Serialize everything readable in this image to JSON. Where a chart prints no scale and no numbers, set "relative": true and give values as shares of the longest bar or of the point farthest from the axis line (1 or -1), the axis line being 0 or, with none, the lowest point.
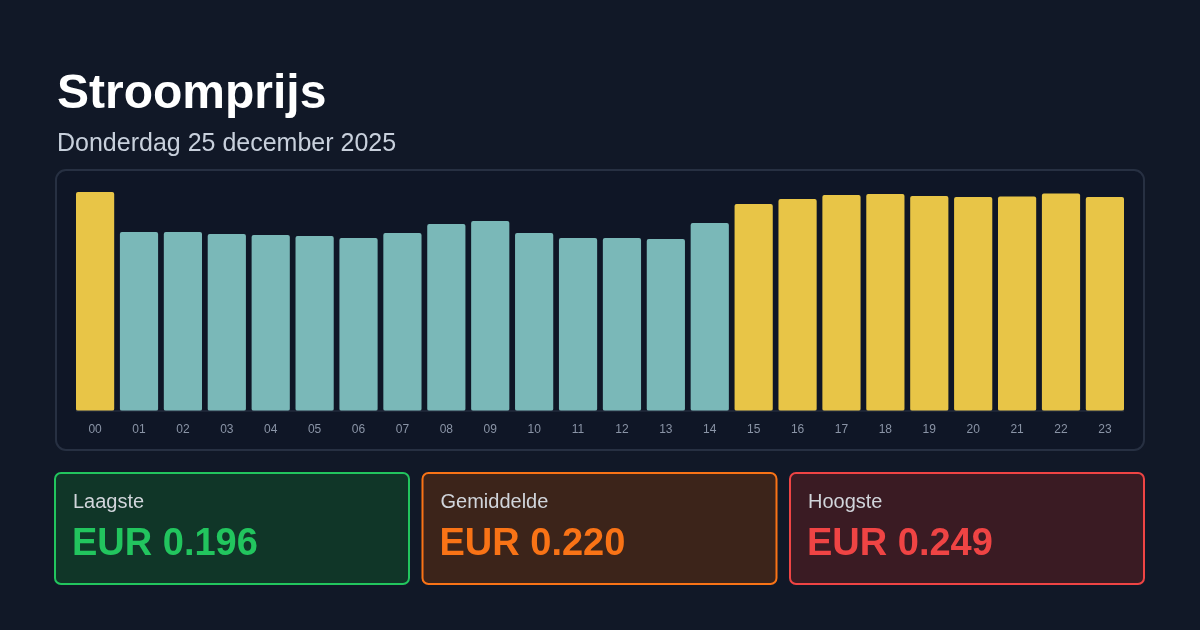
{
  "chart_data": [
    {
      "type": "bar",
      "title": "Stroomprijs",
      "subtitle": "Donderdag 25 december 2025",
      "relative": true,
      "categories": [
        "00",
        "01",
        "02",
        "03",
        "04",
        "05",
        "06",
        "07",
        "08",
        "09",
        "10",
        "11",
        "12",
        "13",
        "14",
        "15",
        "16",
        "17",
        "18",
        "19",
        "20",
        "21",
        "22",
        "23"
      ],
      "values": [
        1.0,
        0.817,
        0.817,
        0.808,
        0.804,
        0.799,
        0.79,
        0.813,
        0.854,
        0.868,
        0.813,
        0.79,
        0.79,
        0.785,
        0.858,
        0.945,
        0.968,
        0.986,
        0.991,
        0.982,
        0.977,
        0.98,
        0.993,
        0.977
      ],
      "colors": [
        "#e8c547",
        "#7ab8b8",
        "#7ab8b8",
        "#7ab8b8",
        "#7ab8b8",
        "#7ab8b8",
        "#7ab8b8",
        "#7ab8b8",
        "#7ab8b8",
        "#7ab8b8",
        "#7ab8b8",
        "#7ab8b8",
        "#7ab8b8",
        "#7ab8b8",
        "#7ab8b8",
        "#e8c547",
        "#e8c547",
        "#e8c547",
        "#e8c547",
        "#e8c547",
        "#e8c547",
        "#e8c547",
        "#e8c547",
        "#e8c547"
      ]
    },
    {
      "type": "other",
      "title": "Laagste",
      "annotations": [
        "EUR 0.196"
      ],
      "colors": [
        "#22c55e"
      ]
    },
    {
      "type": "other",
      "title": "Gemiddelde",
      "annotations": [
        "EUR 0.220"
      ],
      "colors": [
        "#f97316"
      ]
    },
    {
      "type": "other",
      "title": "Hoogste",
      "annotations": [
        "EUR 0.249"
      ],
      "colors": [
        "#ef4444"
      ]
    }
  ]
}
